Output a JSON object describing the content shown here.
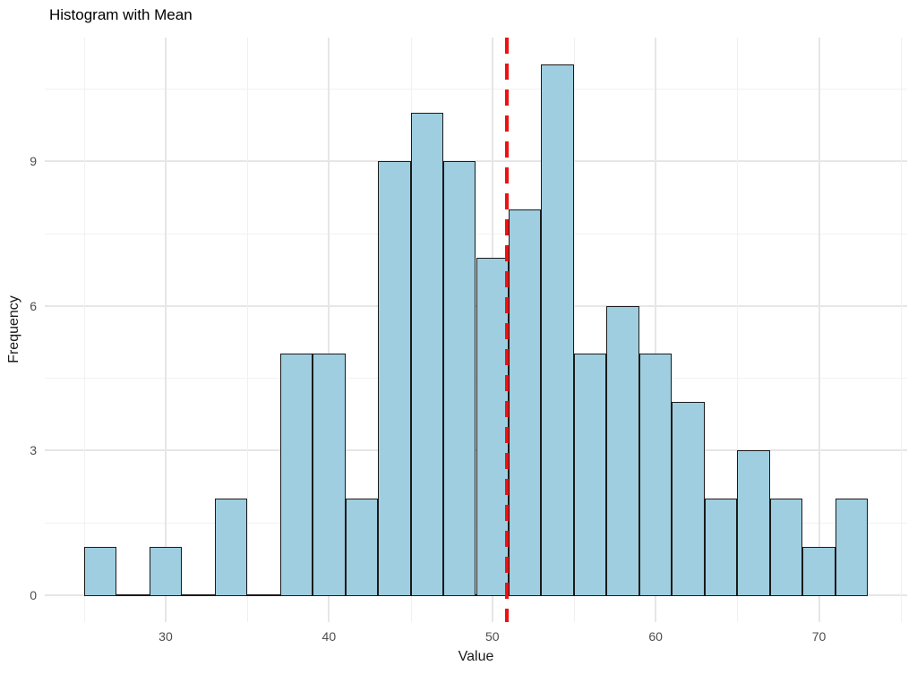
{
  "figure": {
    "background": "#FFFFFF"
  },
  "chart_data": {
    "type": "bar",
    "subtype": "histogram",
    "title": "Histogram with Mean",
    "xlabel": "Value",
    "ylabel": "Frequency",
    "bin_start": 25,
    "bin_width": 2,
    "counts": [
      1,
      0,
      1,
      0,
      2,
      0,
      5,
      5,
      2,
      9,
      10,
      9,
      7,
      8,
      11,
      5,
      6,
      5,
      4,
      2,
      3,
      2,
      1,
      2
    ],
    "total_observations": 100,
    "mean_line": {
      "value": 50.9,
      "color": "#EE1111",
      "style": "dashed"
    },
    "x_ticks": [
      30,
      40,
      50,
      60,
      70
    ],
    "x_minor_ticks": [
      25,
      35,
      45,
      55,
      65,
      75
    ],
    "y_ticks": [
      0,
      3,
      6,
      9
    ],
    "y_minor_ticks": [
      1.5,
      4.5,
      7.5,
      10.5
    ],
    "xlim": [
      22.6,
      75.4
    ],
    "ylim": [
      -0.55,
      11.55
    ],
    "grid": true,
    "legend": "none",
    "colors": {
      "bar_fill": "#9FCEE0",
      "bar_stroke": "#1A1A1A",
      "grid_major": "#E6E6E6",
      "grid_minor": "#F1F1F1",
      "tick_label": "#4D4D4D",
      "axis_title": "#1A1A1A",
      "title": "#000000"
    }
  }
}
